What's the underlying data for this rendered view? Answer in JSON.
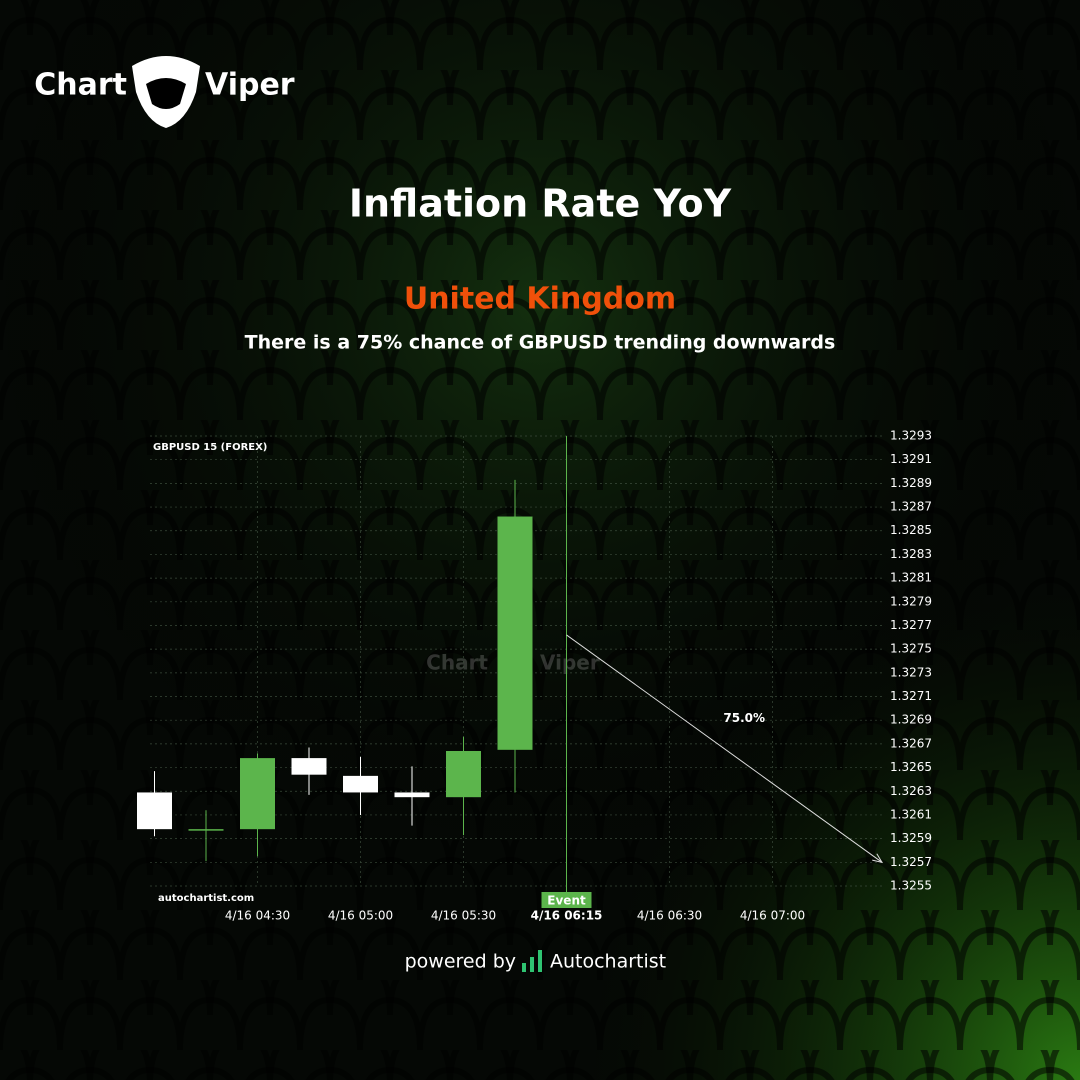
{
  "brand": {
    "left": "Chart",
    "right": "Viper"
  },
  "chart_data": {
    "type": "candlestick",
    "title": "Inflation Rate YoY",
    "subtitle": "United Kingdom",
    "description": "There is a 75% chance of GBPUSD trending downwards",
    "symbol": "GBPUSD 15 (FOREX)",
    "source": "autochartist.com",
    "categories": [
      null,
      null,
      "4/16 04:30",
      null,
      "4/16 05:00",
      null,
      "4/16 05:30",
      null,
      "4/16 06:15",
      null,
      "4/16 06:30",
      null,
      "4/16 07:00"
    ],
    "open": [
      1.32629,
      1.32598,
      1.32598,
      1.32658,
      1.32643,
      1.32629,
      1.32625,
      1.32665,
      null,
      null,
      null,
      null,
      null
    ],
    "high": [
      1.32647,
      1.32614,
      1.32662,
      1.32667,
      1.32659,
      1.32651,
      1.32676,
      1.32893,
      null,
      null,
      null,
      null,
      null
    ],
    "low": [
      1.32592,
      1.32571,
      1.32575,
      1.32627,
      1.3261,
      1.32601,
      1.32593,
      1.32629,
      null,
      null,
      null,
      null,
      null
    ],
    "close": [
      1.32598,
      1.32598,
      1.32658,
      1.32644,
      1.32629,
      1.32625,
      1.32664,
      1.32862,
      null,
      null,
      null,
      null,
      null
    ],
    "up_color": "#5cb54c",
    "down_color": "#ffffff",
    "ylim": [
      1.3255,
      1.3293
    ],
    "yticks": [
      1.3255,
      1.3257,
      1.3259,
      1.3261,
      1.3263,
      1.3265,
      1.3267,
      1.3269,
      1.3271,
      1.3273,
      1.3275,
      1.3277,
      1.3279,
      1.3281,
      1.3283,
      1.3285,
      1.3287,
      1.3289,
      1.3291,
      1.3293
    ],
    "grid": true,
    "event": {
      "label": "Event",
      "color": "#5cb54c"
    },
    "forecast": {
      "label": "75.0%",
      "start": 1.32762,
      "end": 1.3257
    }
  },
  "footer": {
    "prefix": "powered by",
    "brand": "Autochartist"
  }
}
